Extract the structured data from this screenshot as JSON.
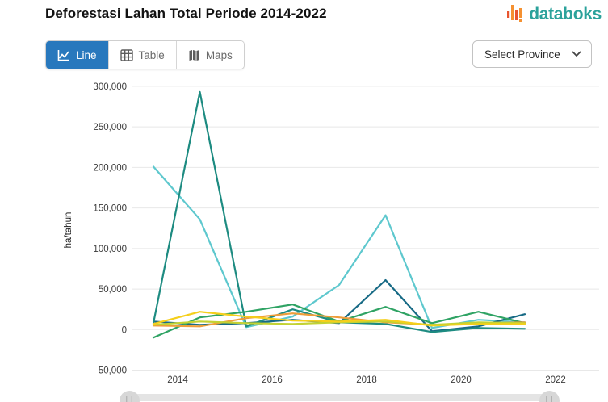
{
  "header": {
    "title": "Deforestasi Lahan Total Periode 2014-2022",
    "logo_text": "databoks"
  },
  "toolbar": {
    "tabs": [
      {
        "label": "Line",
        "active": true
      },
      {
        "label": "Table",
        "active": false
      },
      {
        "label": "Maps",
        "active": false
      }
    ],
    "province_selector": "Select Province"
  },
  "colors": {
    "active_tab_blue": "#2878bd",
    "logo_teal": "#2ba29b",
    "logo_orange": "#f59131",
    "logo_red": "#e8552f",
    "gridline": "#e8e8e8",
    "axis_text": "#3c3c3c"
  },
  "chart_data": {
    "type": "line",
    "title": "Deforestasi Lahan Total Periode 2014-2022",
    "xlabel": "",
    "ylabel": "ha/tahun",
    "x": [
      2014,
      2015,
      2016,
      2017,
      2018,
      2019,
      2020,
      2021,
      2022
    ],
    "x_tick_labels": [
      "2014",
      "2016",
      "2018",
      "2020",
      "2022"
    ],
    "y_ticks": [
      300000,
      250000,
      200000,
      150000,
      100000,
      50000,
      0,
      -50000
    ],
    "ylim": [
      -50000,
      300000
    ],
    "grid": true,
    "legend": "none",
    "series": [
      {
        "name": "light-cyan",
        "color": "#5ec8ce",
        "values": [
          201000,
          136000,
          3000,
          16000,
          55000,
          141000,
          2000,
          12000,
          9000
        ]
      },
      {
        "name": "dark-blue",
        "color": "#176a85",
        "values": [
          10000,
          6000,
          8000,
          12000,
          8000,
          61000,
          -2000,
          4000,
          19000
        ]
      },
      {
        "name": "dark-teal",
        "color": "#1d8b81",
        "values": [
          8000,
          293000,
          4000,
          25000,
          9000,
          7000,
          -3000,
          2000,
          1000
        ]
      },
      {
        "name": "green",
        "color": "#2fa364",
        "values": [
          -10000,
          15000,
          22000,
          31000,
          10000,
          28000,
          8000,
          22000,
          8000
        ]
      },
      {
        "name": "orange",
        "color": "#ee9d3a",
        "values": [
          5000,
          4000,
          14000,
          20000,
          15000,
          9000,
          6000,
          8000,
          9000
        ]
      },
      {
        "name": "lime",
        "color": "#c3d233",
        "values": [
          6000,
          10000,
          8000,
          7000,
          9000,
          10000,
          6000,
          9000,
          8000
        ]
      },
      {
        "name": "yellow",
        "color": "#f5cf1b",
        "values": [
          7000,
          22000,
          16000,
          11000,
          10000,
          12000,
          5000,
          7000,
          7000
        ]
      }
    ]
  }
}
